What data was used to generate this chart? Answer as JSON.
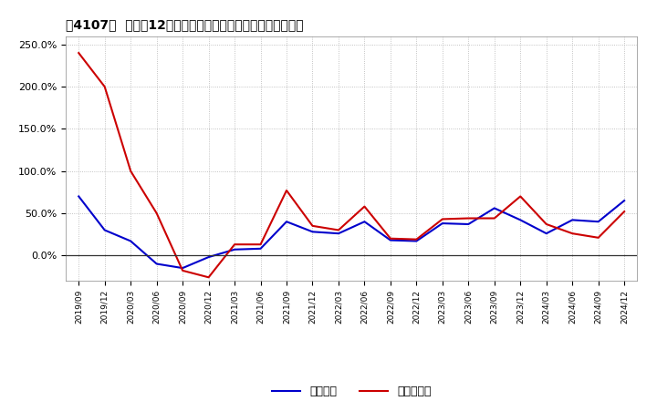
{
  "title": "［4107］  利益の12か月移動合計の対前年同期増減率の推移",
  "labels": [
    "2019/09",
    "2019/12",
    "2020/03",
    "2020/06",
    "2020/09",
    "2020/12",
    "2021/03",
    "2021/06",
    "2021/09",
    "2021/12",
    "2022/03",
    "2022/06",
    "2022/09",
    "2022/12",
    "2023/03",
    "2023/06",
    "2023/09",
    "2023/12",
    "2024/03",
    "2024/06",
    "2024/09",
    "2024/12"
  ],
  "keijo_rieki": [
    0.7,
    0.3,
    0.17,
    -0.1,
    -0.15,
    -0.02,
    0.07,
    0.08,
    0.4,
    0.28,
    0.26,
    0.4,
    0.18,
    0.17,
    0.38,
    0.37,
    0.56,
    0.42,
    0.26,
    0.42,
    0.4,
    0.65
  ],
  "junrieki": [
    2.4,
    2.0,
    1.0,
    0.5,
    -0.18,
    -0.26,
    0.13,
    0.13,
    0.77,
    0.35,
    0.3,
    0.58,
    0.2,
    0.19,
    0.43,
    0.44,
    0.44,
    0.7,
    0.37,
    0.26,
    0.21,
    0.52
  ],
  "keijo_color": "#0000cc",
  "junrieki_color": "#cc0000",
  "ylim": [
    -0.3,
    2.6
  ],
  "yticks": [
    0.0,
    0.5,
    1.0,
    1.5,
    2.0,
    2.5
  ],
  "ytick_labels": [
    "0.0%",
    "50.0%",
    "100.0%",
    "150.0%",
    "200.0%",
    "250.0%"
  ],
  "background_color": "#ffffff",
  "grid_color": "#aaaaaa",
  "legend_keijo": "経常利益",
  "legend_junrieki": "当期純利益",
  "linewidth": 1.5
}
